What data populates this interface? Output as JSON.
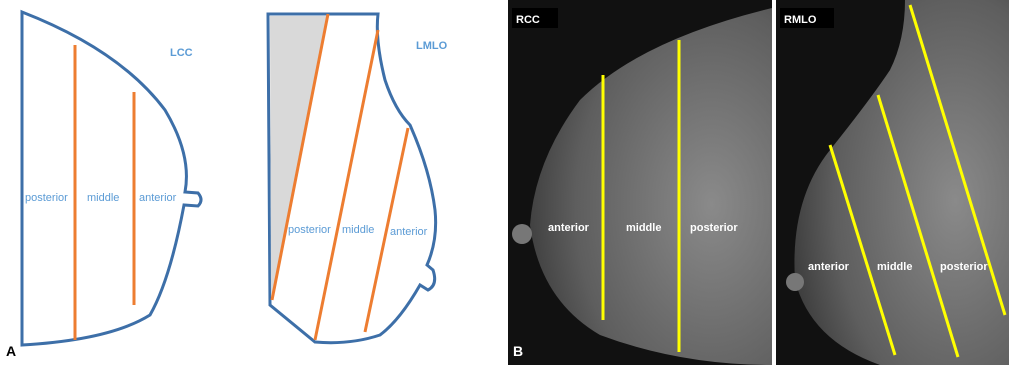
{
  "panel_a": {
    "label": "A",
    "views": [
      {
        "title": "LCC",
        "regions": [
          "posterior",
          "middle",
          "anterior"
        ]
      },
      {
        "title": "LMLO",
        "regions": [
          "posterior",
          "middle",
          "anterior"
        ]
      }
    ]
  },
  "panel_b": {
    "label": "B",
    "views": [
      {
        "title": "RCC",
        "regions": [
          "anterior",
          "middle",
          "posterior"
        ]
      },
      {
        "title": "RMLO",
        "regions": [
          "anterior",
          "middle",
          "posterior"
        ]
      }
    ]
  }
}
